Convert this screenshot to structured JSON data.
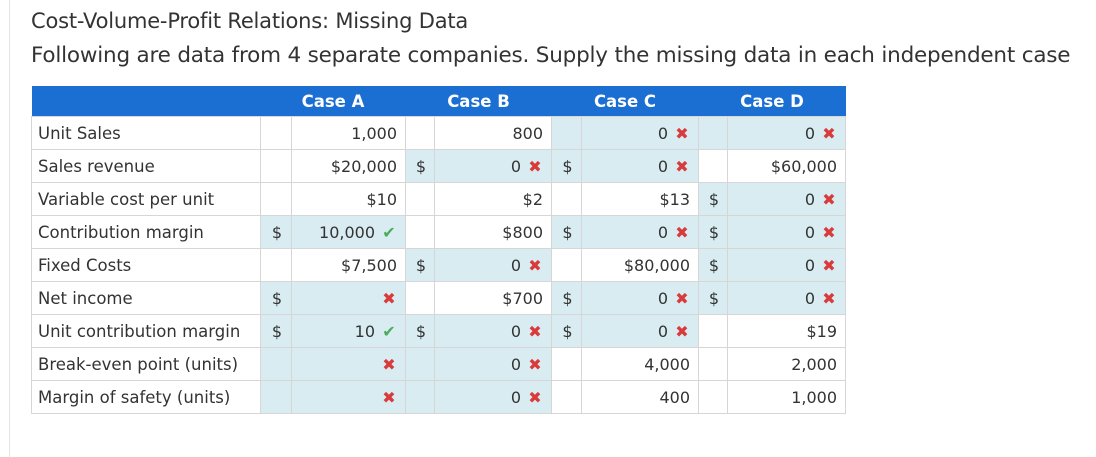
{
  "title": "Cost-Volume-Profit Relations: Missing Data",
  "subtitle": "Following are data from 4 separate companies. Supply the missing data in each independent case",
  "headers": [
    "",
    "Case A",
    "Case B",
    "Case C",
    "Case D"
  ],
  "rows": [
    {
      "label": "Unit Sales",
      "cells": [
        {
          "cur": "",
          "val": "1,000",
          "mark": "",
          "in": false
        },
        {
          "cur": "",
          "val": "800",
          "mark": "",
          "in": false
        },
        {
          "cur": "",
          "val": "0",
          "mark": "x",
          "in": true
        },
        {
          "cur": "",
          "val": "0",
          "mark": "x",
          "in": true
        }
      ]
    },
    {
      "label": "Sales revenue",
      "cells": [
        {
          "cur": "",
          "val": "$20,000",
          "mark": "",
          "in": false
        },
        {
          "cur": "$",
          "val": "0",
          "mark": "x",
          "in": true
        },
        {
          "cur": "$",
          "val": "0",
          "mark": "x",
          "in": true
        },
        {
          "cur": "",
          "val": "$60,000",
          "mark": "",
          "in": false
        }
      ]
    },
    {
      "label": "Variable cost per unit",
      "cells": [
        {
          "cur": "",
          "val": "$10",
          "mark": "",
          "in": false
        },
        {
          "cur": "",
          "val": "$2",
          "mark": "",
          "in": false
        },
        {
          "cur": "",
          "val": "$13",
          "mark": "",
          "in": false
        },
        {
          "cur": "$",
          "val": "0",
          "mark": "x",
          "in": true
        }
      ]
    },
    {
      "label": "Contribution margin",
      "cells": [
        {
          "cur": "$",
          "val": "10,000",
          "mark": "ok",
          "in": true
        },
        {
          "cur": "",
          "val": "$800",
          "mark": "",
          "in": false
        },
        {
          "cur": "$",
          "val": "0",
          "mark": "x",
          "in": true
        },
        {
          "cur": "$",
          "val": "0",
          "mark": "x",
          "in": true
        }
      ]
    },
    {
      "label": "Fixed Costs",
      "cells": [
        {
          "cur": "",
          "val": "$7,500",
          "mark": "",
          "in": false
        },
        {
          "cur": "$",
          "val": "0",
          "mark": "x",
          "in": true
        },
        {
          "cur": "",
          "val": "$80,000",
          "mark": "",
          "in": false
        },
        {
          "cur": "$",
          "val": "0",
          "mark": "x",
          "in": true
        }
      ]
    },
    {
      "label": "Net income",
      "cells": [
        {
          "cur": "$",
          "val": "",
          "mark": "x",
          "in": true
        },
        {
          "cur": "",
          "val": "$700",
          "mark": "",
          "in": false
        },
        {
          "cur": "$",
          "val": "0",
          "mark": "x",
          "in": true
        },
        {
          "cur": "$",
          "val": "0",
          "mark": "x",
          "in": true
        }
      ]
    },
    {
      "label": "Unit contribution margin",
      "cells": [
        {
          "cur": "$",
          "val": "10",
          "mark": "ok",
          "in": true
        },
        {
          "cur": "$",
          "val": "0",
          "mark": "x",
          "in": true
        },
        {
          "cur": "$",
          "val": "0",
          "mark": "x",
          "in": true
        },
        {
          "cur": "",
          "val": "$19",
          "mark": "",
          "in": false
        }
      ]
    },
    {
      "label": "Break-even point (units)",
      "cells": [
        {
          "cur": "",
          "val": "",
          "mark": "x",
          "in": true
        },
        {
          "cur": "",
          "val": "0",
          "mark": "x",
          "in": true
        },
        {
          "cur": "",
          "val": "4,000",
          "mark": "",
          "in": false
        },
        {
          "cur": "",
          "val": "2,000",
          "mark": "",
          "in": false
        }
      ]
    },
    {
      "label": "Margin of safety (units)",
      "cells": [
        {
          "cur": "",
          "val": "",
          "mark": "x",
          "in": true
        },
        {
          "cur": "",
          "val": "0",
          "mark": "x",
          "in": true
        },
        {
          "cur": "",
          "val": "400",
          "mark": "",
          "in": false
        },
        {
          "cur": "",
          "val": "1,000",
          "mark": "",
          "in": false
        }
      ]
    }
  ],
  "colors": {
    "header": "#1b6fd3",
    "input": "#d9ecf2",
    "incorrect": "#d93a3a",
    "correct": "#4aad5b"
  },
  "icons": {
    "x": "incorrect-x-icon",
    "ok": "correct-check-icon"
  }
}
